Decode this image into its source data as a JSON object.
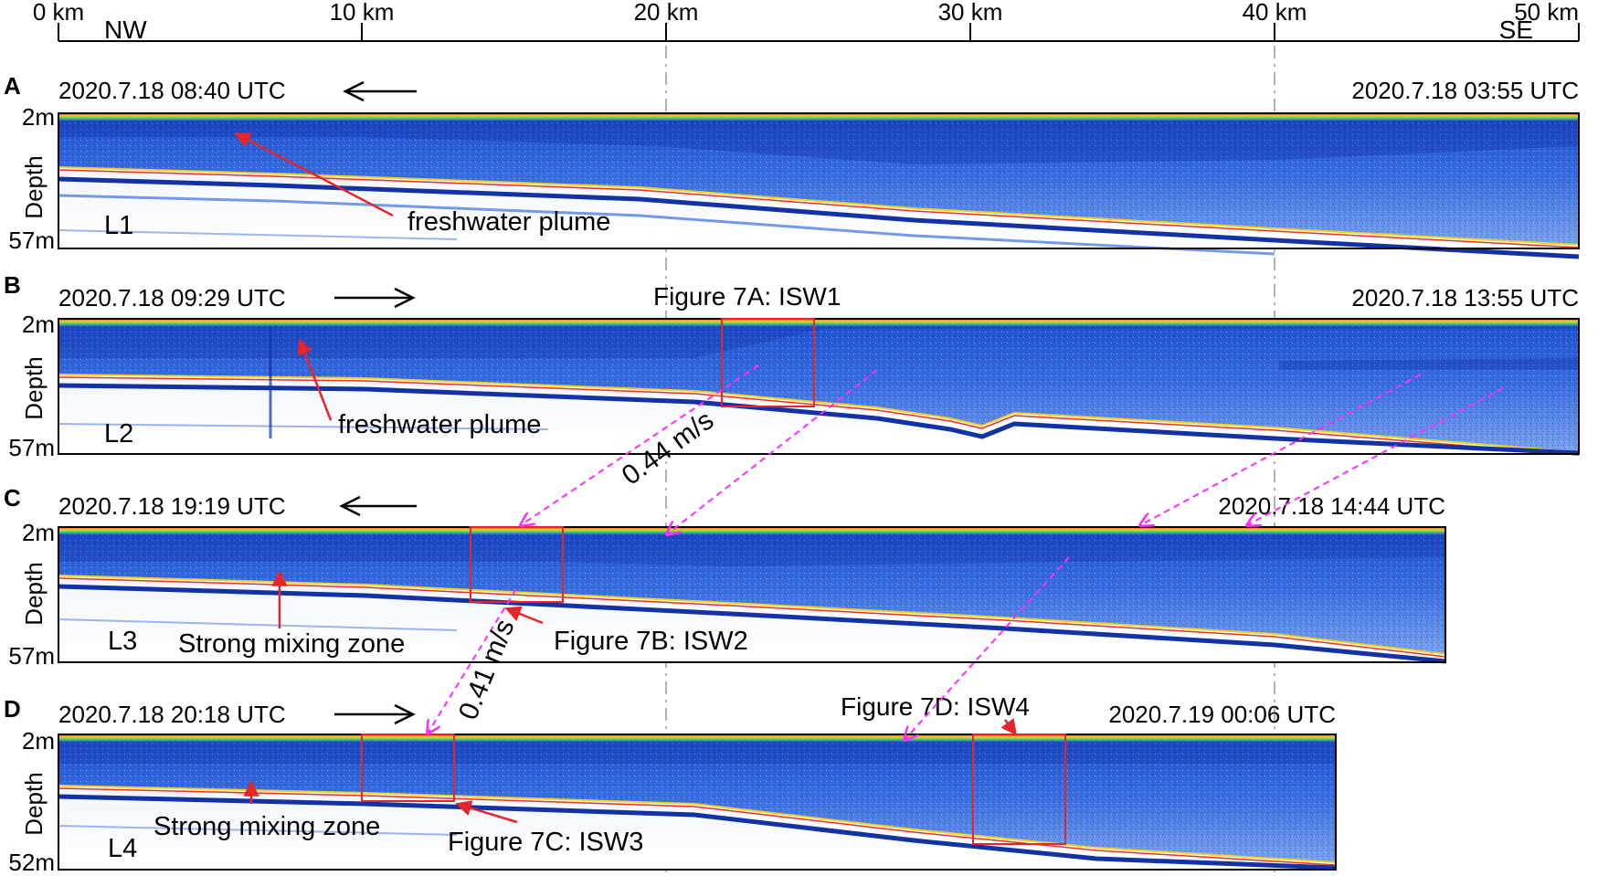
{
  "scale": {
    "ticks": [
      "0 km",
      "10 km",
      "20 km",
      "30 km",
      "40 km",
      "50 km"
    ],
    "direction_left": "NW",
    "direction_right": "SE"
  },
  "common": {
    "depth_axis_label": "Depth"
  },
  "panels": [
    {
      "letter": "A",
      "time_left": "2020.7.18 08:40 UTC",
      "time_right": "2020.7.18 03:55 UTC",
      "arrow": "left",
      "depth_top": "2m",
      "depth_bottom": "57m",
      "line": "L1",
      "annotations": [
        "freshwater plume"
      ]
    },
    {
      "letter": "B",
      "time_left": "2020.7.18 09:29 UTC",
      "time_right": "2020.7.18 13:55 UTC",
      "arrow": "right",
      "depth_top": "2m",
      "depth_bottom": "57m",
      "line": "L2",
      "annotations": [
        "freshwater plume",
        "Figure 7A: ISW1"
      ]
    },
    {
      "letter": "C",
      "time_left": "2020.7.18 19:19 UTC",
      "time_right": "2020.7.18 14:44 UTC",
      "arrow": "left",
      "depth_top": "2m",
      "depth_bottom": "57m",
      "line": "L3",
      "annotations": [
        "Strong mixing zone",
        "Figure 7B: ISW2"
      ]
    },
    {
      "letter": "D",
      "time_left": "2020.7.18 20:18 UTC",
      "time_right": "2020.7.19 00:06 UTC",
      "arrow": "right",
      "depth_top": "2m",
      "depth_bottom": "52m",
      "line": "L4",
      "annotations": [
        "Strong mixing zone",
        "Figure 7C: ISW3",
        "Figure 7D: ISW4"
      ]
    }
  ],
  "speeds": [
    "0.44 m/s",
    "0.41 m/s"
  ],
  "colors": {
    "water": "#2a5fd6",
    "water_dark": "#1232a6",
    "surface_red": "#e8332a",
    "surface_yellow": "#f2d21e",
    "highlight_box": "#e4252a",
    "tracking_line": "#ff2cff",
    "gridline": "#9a9a9a"
  }
}
